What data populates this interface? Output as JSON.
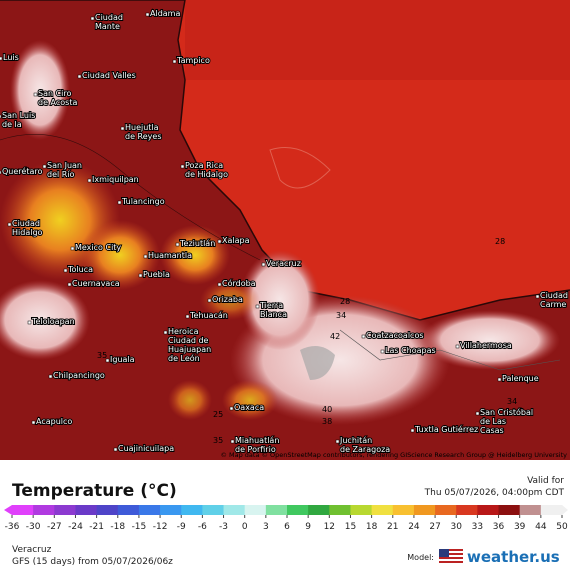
{
  "map": {
    "attribution": "© Map data © OpenStreetMap contributors, rendering GIScience Research Group @ Heidelberg University",
    "cities": [
      [
        "Ciudad",
        "Mante"
      ],
      [
        "Aldama"
      ],
      [
        "Tampico"
      ],
      [
        "Luis"
      ],
      [
        "San Ciro",
        "de Acosta"
      ],
      [
        "Ciudad Valles"
      ],
      [
        "San Luis",
        "de la"
      ],
      [
        "Huejutla",
        "de Reyes"
      ],
      [
        "Poza Rica",
        "de Hidalgo"
      ],
      [
        "Querétaro"
      ],
      [
        "San Juan",
        "del Río"
      ],
      [
        "Ixmiquilpan"
      ],
      [
        "Tulancingo"
      ],
      [
        "Teziutlán"
      ],
      [
        "Xalapa"
      ],
      [
        "Ciudad",
        "Hidalgo"
      ],
      [
        "Mexico City"
      ],
      [
        "Toluca"
      ],
      [
        "Huamantla"
      ],
      [
        "Veracruz"
      ],
      [
        "Cuernavaca"
      ],
      [
        "Puebla"
      ],
      [
        "Córdoba"
      ],
      [
        "Orizaba"
      ],
      [
        "Tehuacán"
      ],
      [
        "Tierra",
        "Blanca"
      ],
      [
        "Teloloapan"
      ],
      [
        "Heroica",
        "Ciudad de",
        "Huajuapan",
        "de León"
      ],
      [
        "Iguala"
      ],
      [
        "Chilpancingo"
      ],
      [
        "Oaxaca"
      ],
      [
        "Acapulco"
      ],
      [
        "Cuajinicuilapa"
      ],
      [
        "Miahuatlán",
        "de Porfirio"
      ],
      [
        "Juchitán",
        "de Zaragoza"
      ],
      [
        "Coatzacoalcos"
      ],
      [
        "Las Choapas"
      ],
      [
        "Villahermosa"
      ],
      [
        "Ciudad",
        "Carme"
      ],
      [
        "Palenque"
      ],
      [
        "San Cristóbal",
        "de Las",
        "Casas"
      ],
      [
        "Tuxtla Gutiérrez"
      ]
    ],
    "values": [
      "28",
      "28",
      "34",
      "42",
      "40",
      "38",
      "35",
      "25",
      "35",
      "34"
    ]
  },
  "legend": {
    "title": "Temperature (°C)",
    "valid_label": "Valid for",
    "valid_time": "Thu 05/07/2026, 04:00pm CDT",
    "ticks": [
      -36,
      -30,
      -27,
      -24,
      -21,
      -18,
      -15,
      -12,
      -9,
      -6,
      -3,
      0,
      3,
      6,
      9,
      12,
      15,
      18,
      21,
      24,
      27,
      30,
      33,
      36,
      39,
      44,
      50
    ],
    "colors": [
      "#e040fb",
      "#b03ae0",
      "#8c3ad0",
      "#6a3ac8",
      "#4e44c8",
      "#3e5ad8",
      "#3a78e8",
      "#3a98f0",
      "#40b8f0",
      "#60d0e8",
      "#a0e8e8",
      "#d8f4f0",
      "#80e0a0",
      "#40c860",
      "#30a840",
      "#70c030",
      "#b8d830",
      "#f0e040",
      "#f8c030",
      "#f09820",
      "#e86820",
      "#d83820",
      "#b81818",
      "#8c1010",
      "#c09090",
      "#f0f0f0"
    ]
  },
  "footer": {
    "location": "Veracruz",
    "run": "GFS (15 days) from 05/07/2026/06z",
    "model_label": "Model:",
    "brand": "weather.us"
  }
}
